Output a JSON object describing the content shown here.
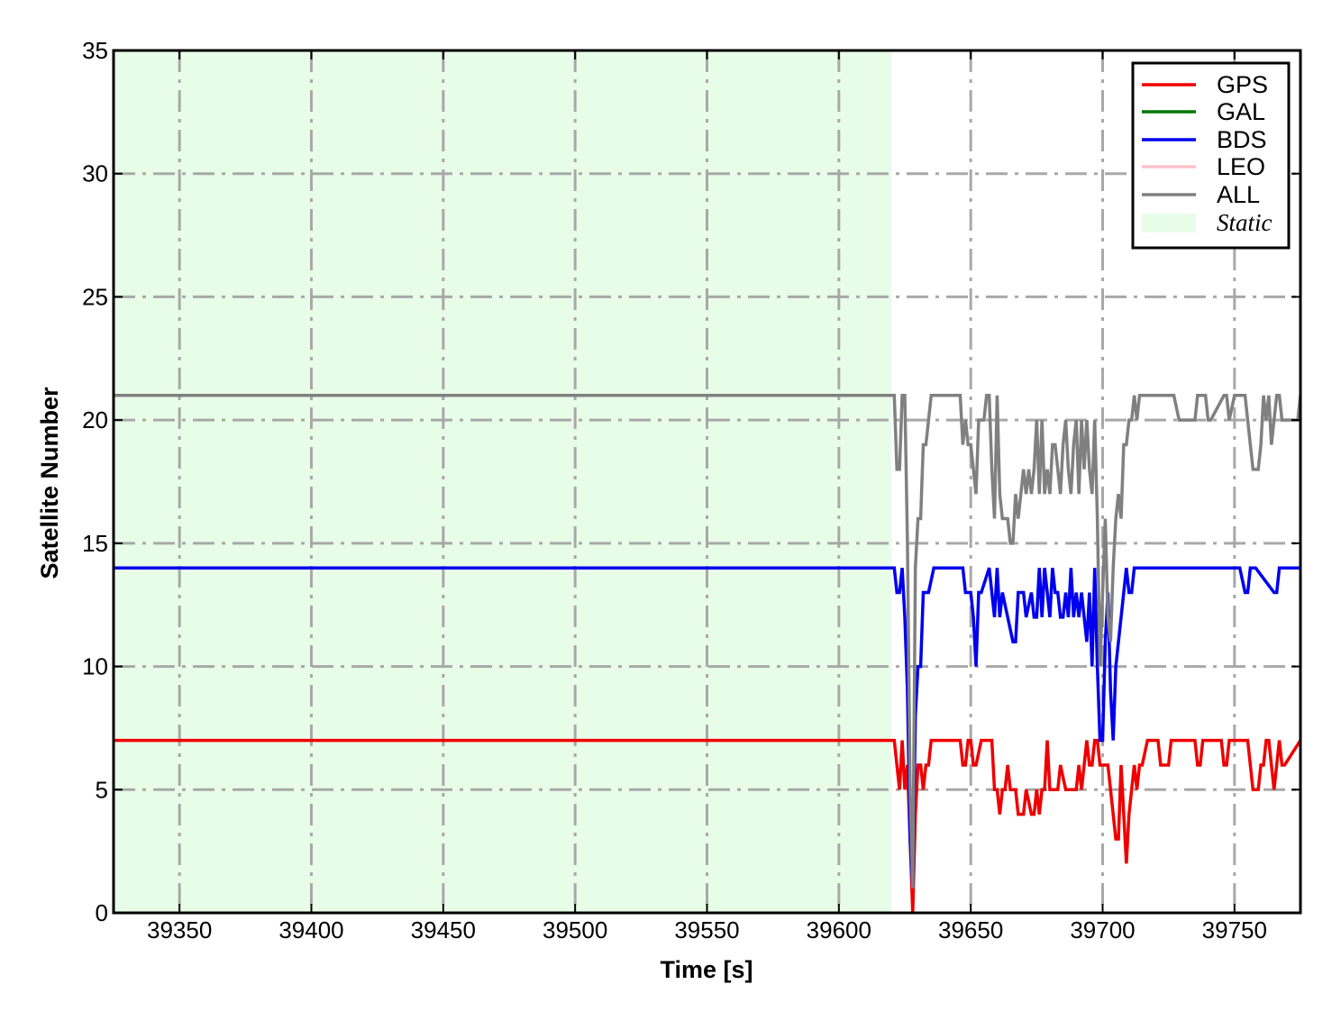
{
  "chart_data": {
    "type": "line",
    "title": "",
    "xlabel": "Time [s]",
    "ylabel": "Satellite Number",
    "xlim": [
      39325,
      39775
    ],
    "ylim": [
      0,
      35
    ],
    "xticks": [
      39350,
      39400,
      39450,
      39500,
      39550,
      39600,
      39650,
      39700,
      39750
    ],
    "yticks": [
      0,
      5,
      10,
      15,
      20,
      25,
      30,
      35
    ],
    "grid": true,
    "legend_position": "top-right",
    "shaded_region": {
      "label": "Static",
      "x_start": 39325,
      "x_end": 39620,
      "color": "#e8fde8"
    },
    "series": [
      {
        "name": "GPS",
        "color": "#ee0000",
        "x": [
          39325,
          39621,
          39622,
          39623,
          39624,
          39625,
          39626,
          39627,
          39628,
          39629,
          39630,
          39631,
          39632,
          39633,
          39634,
          39635,
          39637,
          39646,
          39647,
          39648,
          39649,
          39650,
          39651,
          39652,
          39654,
          39658,
          39659,
          39660,
          39661,
          39662,
          39663,
          39664,
          39665,
          39666,
          39667,
          39668,
          39669,
          39670,
          39671,
          39673,
          39674,
          39675,
          39676,
          39677,
          39678,
          39679,
          39680,
          39681,
          39682,
          39683,
          39684,
          39686,
          39687,
          39688,
          39689,
          39690,
          39691,
          39692,
          39694,
          39695,
          39696,
          39697,
          39698,
          39699,
          39700,
          39701,
          39702,
          39703,
          39704,
          39705,
          39706,
          39707,
          39708,
          39709,
          39710,
          39711,
          39712,
          39713,
          39714,
          39715,
          39717,
          39720,
          39721,
          39722,
          39725,
          39726,
          39727,
          39728,
          39735,
          39736,
          39737,
          39738,
          39739,
          39740,
          39741,
          39745,
          39746,
          39747,
          39748,
          39750,
          39755,
          39756,
          39757,
          39758,
          39759,
          39760,
          39761,
          39762,
          39763,
          39765,
          39766,
          39767,
          39768,
          39769,
          39775
        ],
        "y": [
          7,
          7,
          6,
          5,
          7,
          5,
          6,
          3,
          0,
          4,
          6,
          6,
          5,
          6,
          6,
          7,
          7,
          7,
          6,
          6,
          7,
          7,
          6,
          6,
          7,
          7,
          5,
          5,
          4,
          5,
          5,
          6,
          5,
          5,
          5,
          4,
          4,
          4,
          5,
          4,
          4,
          5,
          4,
          5,
          5,
          7,
          5,
          5,
          5,
          5,
          6,
          5,
          5,
          5,
          5,
          5,
          6,
          5,
          7,
          6,
          6,
          7,
          7,
          6,
          6,
          6,
          6,
          5,
          4,
          3,
          3,
          6,
          4,
          2,
          4,
          5,
          6,
          5,
          6,
          6,
          7,
          7,
          7,
          6,
          6,
          7,
          7,
          7,
          7,
          6,
          6,
          7,
          7,
          7,
          7,
          7,
          6,
          6,
          7,
          7,
          7,
          6,
          5,
          5,
          5,
          6,
          6,
          7,
          7,
          5,
          6,
          7,
          6,
          6,
          7
        ]
      },
      {
        "name": "GAL",
        "color": "#007700",
        "x": [],
        "y": []
      },
      {
        "name": "BDS",
        "color": "#0000ee",
        "x": [
          39325,
          39621,
          39622,
          39623,
          39624,
          39625,
          39626,
          39627,
          39628,
          39629,
          39630,
          39631,
          39632,
          39634,
          39636,
          39647,
          39648,
          39649,
          39650,
          39651,
          39652,
          39653,
          39654,
          39657,
          39658,
          39659,
          39660,
          39661,
          39662,
          39664,
          39666,
          39667,
          39668,
          39669,
          39670,
          39671,
          39673,
          39674,
          39675,
          39676,
          39677,
          39678,
          39679,
          39680,
          39681,
          39682,
          39683,
          39684,
          39685,
          39686,
          39687,
          39688,
          39689,
          39690,
          39691,
          39692,
          39693,
          39694,
          39695,
          39696,
          39697,
          39698,
          39699,
          39700,
          39701,
          39702,
          39703,
          39704,
          39705,
          39706,
          39707,
          39708,
          39709,
          39710,
          39711,
          39712,
          39713,
          39714,
          39715,
          39716,
          39717,
          39718,
          39720,
          39728,
          39750,
          39751,
          39752,
          39754,
          39755,
          39756,
          39757,
          39758,
          39765,
          39766,
          39767,
          39775
        ],
        "y": [
          14,
          14,
          13,
          13,
          14,
          12,
          9,
          3,
          1,
          8,
          10,
          10,
          13,
          13,
          14,
          14,
          13,
          13,
          13,
          12,
          10,
          13,
          13,
          14,
          13,
          12,
          14,
          12,
          13,
          12,
          11,
          11,
          13,
          13,
          13,
          12,
          13,
          12,
          12,
          14,
          12,
          14,
          13,
          12,
          14,
          13,
          13,
          12,
          12,
          13,
          12,
          14,
          12,
          13,
          12,
          13,
          12,
          11,
          13,
          10,
          14,
          10,
          7,
          7,
          11,
          13,
          9,
          7,
          10,
          11,
          12,
          13,
          14,
          13,
          13,
          14,
          14,
          14,
          14,
          14,
          14,
          14,
          14,
          14,
          14,
          14,
          14,
          13,
          13,
          14,
          14,
          14,
          13,
          13,
          14,
          14
        ]
      },
      {
        "name": "LEO",
        "color": "#ffc0cb",
        "x": [],
        "y": []
      },
      {
        "name": "ALL",
        "color": "#808080",
        "x": [
          39325,
          39621,
          39622,
          39623,
          39624,
          39625,
          39626,
          39627,
          39628,
          39629,
          39630,
          39631,
          39632,
          39633,
          39634,
          39635,
          39636,
          39637,
          39639,
          39646,
          39647,
          39648,
          39649,
          39650,
          39651,
          39652,
          39653,
          39655,
          39656,
          39657,
          39658,
          39659,
          39660,
          39661,
          39662,
          39664,
          39665,
          39666,
          39667,
          39668,
          39669,
          39670,
          39671,
          39672,
          39673,
          39674,
          39675,
          39676,
          39677,
          39678,
          39679,
          39680,
          39681,
          39682,
          39683,
          39684,
          39685,
          39686,
          39687,
          39688,
          39689,
          39690,
          39691,
          39692,
          39693,
          39694,
          39695,
          39696,
          39697,
          39698,
          39699,
          39700,
          39701,
          39702,
          39703,
          39704,
          39705,
          39706,
          39707,
          39708,
          39709,
          39710,
          39711,
          39712,
          39713,
          39714,
          39715,
          39716,
          39717,
          39718,
          39720,
          39726,
          39727,
          39729,
          39735,
          39736,
          39737,
          39739,
          39740,
          39741,
          39746,
          39747,
          39748,
          39750,
          39753,
          39754,
          39755,
          39756,
          39757,
          39759,
          39760,
          39761,
          39762,
          39763,
          39764,
          39766,
          39767,
          39768,
          39774,
          39775
        ],
        "y": [
          21,
          21,
          18,
          18,
          21,
          21,
          15,
          5,
          1,
          14,
          16,
          16,
          19,
          19,
          20,
          21,
          21,
          21,
          21,
          21,
          19,
          20,
          19,
          19,
          18,
          17,
          20,
          20,
          21,
          21,
          18,
          16,
          21,
          17,
          16,
          16,
          15,
          15,
          17,
          16,
          17,
          18,
          17,
          18,
          17,
          18,
          20,
          17,
          20,
          17,
          18,
          17,
          19,
          19,
          18,
          17,
          19,
          20,
          18,
          17,
          19,
          20,
          17,
          20,
          18,
          20,
          18,
          17,
          20,
          16,
          10,
          13,
          16,
          12,
          11,
          14,
          16,
          17,
          16,
          19,
          19,
          20,
          20,
          21,
          20,
          21,
          21,
          21,
          21,
          21,
          21,
          21,
          21,
          20,
          20,
          21,
          21,
          21,
          20,
          20,
          21,
          21,
          20,
          21,
          21,
          21,
          20,
          19,
          18,
          18,
          19,
          21,
          20,
          21,
          19,
          21,
          21,
          20,
          20,
          21
        ]
      }
    ]
  }
}
